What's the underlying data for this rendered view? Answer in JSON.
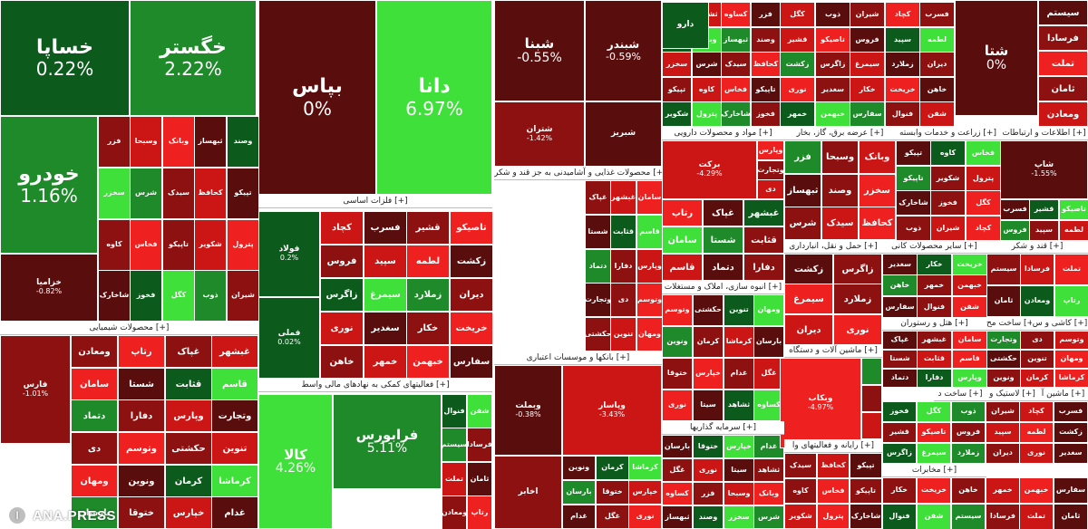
{
  "colors": {
    "strong_green": "#3fe03a",
    "green": "#1f8a2a",
    "dark_green": "#0c5a1c",
    "neutral": "#5a0d0d",
    "light_red": "#ee2020",
    "red": "#cc1515",
    "dark_red": "#8e1111",
    "header_bg": "#ffffff"
  },
  "tiles": [
    {
      "sym": "خساپا",
      "pct": "0.22%",
      "tone": "dark_green",
      "size": "xl"
    },
    {
      "sym": "خگستر",
      "pct": "2.22%",
      "tone": "green",
      "size": "xl"
    },
    {
      "sym": "خودرو",
      "pct": "1.16%",
      "tone": "green",
      "size": "xl"
    },
    {
      "sym": "خزامیا",
      "pct": "-0.82%",
      "tone": "neutral",
      "size": "s"
    },
    {
      "sym": "بپاس",
      "pct": "0%",
      "tone": "neutral",
      "size": "xl"
    },
    {
      "sym": "دانا",
      "pct": "6.97%",
      "tone": "strong_green",
      "size": "xl"
    },
    {
      "sym": "شبنا",
      "pct": "-0.55%",
      "tone": "neutral",
      "size": "l"
    },
    {
      "sym": "شبندر",
      "pct": "-0.59%",
      "tone": "neutral",
      "size": "m"
    },
    {
      "sym": "شسپا",
      "pct": "",
      "tone": "dark_red",
      "size": "s"
    },
    {
      "sym": "شتران",
      "pct": "-1.42%",
      "tone": "dark_red",
      "size": "s"
    },
    {
      "sym": "شبریز",
      "pct": "",
      "tone": "neutral",
      "size": "s"
    },
    {
      "sym": "شتا",
      "pct": "0%",
      "tone": "neutral",
      "size": "l"
    },
    {
      "sym": "فارس",
      "pct": "-1.01%",
      "tone": "dark_red",
      "size": "s"
    },
    {
      "sym": "فولاد",
      "pct": "0.2%",
      "tone": "dark_green",
      "size": "s"
    },
    {
      "sym": "فملی",
      "pct": "0.02%",
      "tone": "dark_green",
      "size": "s"
    },
    {
      "sym": "کالا",
      "pct": "4.26%",
      "tone": "strong_green",
      "size": "l"
    },
    {
      "sym": "فرابورس",
      "pct": "5.11%",
      "tone": "green",
      "size": "l"
    },
    {
      "sym": "وبملت",
      "pct": "-0.38%",
      "tone": "neutral",
      "size": "s"
    },
    {
      "sym": "وپاسار",
      "pct": "-3.43%",
      "tone": "red",
      "size": "s"
    },
    {
      "sym": "برکت",
      "pct": "-4.29%",
      "tone": "red",
      "size": "s"
    },
    {
      "sym": "شاپ",
      "pct": "-1.55%",
      "tone": "neutral",
      "size": "s"
    },
    {
      "sym": "وبکاب",
      "pct": "-4.97%",
      "tone": "light_red",
      "size": "s"
    },
    {
      "sym": "اخابر",
      "pct": "",
      "tone": "dark_red",
      "size": "s"
    },
    {
      "sym": "دارو",
      "pct": "",
      "tone": "dark_green",
      "size": "s"
    }
  ],
  "small_labels": [
    "فزر",
    "وسبحا",
    "وبانک",
    "ثبهساز",
    "وصند",
    "سخزر",
    "شرس",
    "سیدک",
    "کحافظ",
    "تپیکو",
    "کاوه",
    "فخاس",
    "تاپیکو",
    "شکویر",
    "پترول",
    "شاخارک",
    "فخوز",
    "کگل",
    "ذوب",
    "شیران",
    "کچاد",
    "فسرب",
    "قشیر",
    "تاصیکو",
    "فروس",
    "سپید",
    "لطمه",
    "زکشت",
    "زاگرس",
    "سیمرغ",
    "زملارد",
    "دیران",
    "نوری",
    "سغدیر",
    "خکار",
    "خریخت",
    "خاهن",
    "خمهر",
    "خبهمن",
    "سفارس",
    "فنوال",
    "شفن",
    "سیستم",
    "فرسادا",
    "تملت",
    "ثامان",
    "ومعادن",
    "رتاپ",
    "غپاک",
    "غبشهر",
    "سامان",
    "شستا",
    "قثابت",
    "قاسم",
    "دتماد",
    "دفارا",
    "وپارس",
    "وتجارت",
    "دی",
    "وتوسم",
    "حکشتی",
    "تنوین",
    "ومهان",
    "ونوین",
    "کرمان",
    "کرماشا",
    "بارسان",
    "ختوقا",
    "خپارس",
    "غدام",
    "غگل",
    "نوری",
    "سیتا",
    "ثشاهد",
    "کساوه"
  ],
  "headers": [
    {
      "text": "محصولات شیمیایی [+]"
    },
    {
      "text": "فلزات اساسی [+]"
    },
    {
      "text": "محصولات غذایی و آشامیدنی به جز قند و شکر [+]"
    },
    {
      "text": "انبوه سازی، املاک و مستغلات [+]"
    },
    {
      "text": "بانکها و موسسات اعتباری [+]"
    },
    {
      "text": "فعالیتهای کمکی به نهادهای مالی واسط [+]"
    },
    {
      "text": "مواد و محصولات دارویی [+]"
    },
    {
      "text": "عرضه برق، گاز، بخار [+]"
    },
    {
      "text": "زراعت و خدمات وابسته [+]"
    },
    {
      "text": "اطلاعات و ارتباطات [+]"
    },
    {
      "text": "حمل و نقل، انبارداری [+]"
    },
    {
      "text": "سایر محصولات کانی [+]"
    },
    {
      "text": "قند و شکر [+]"
    },
    {
      "text": "ماشین آلات و دستگاه [+]"
    },
    {
      "text": "هتل و رستوران [+]"
    },
    {
      "text": "ساخت مح [+]"
    },
    {
      "text": "کاشی و س [+]"
    },
    {
      "text": "سرمایه گذاریها [+]"
    },
    {
      "text": "رایانه و فعالیتهای وا [+]"
    },
    {
      "text": "مخابرات [+]"
    },
    {
      "text": "لاستیک و [+]"
    },
    {
      "text": "ساخت د [+]"
    },
    {
      "text": "ماشین آ [+]"
    }
  ],
  "watermark": {
    "brand": "ANA.PRESS",
    "logo_icon": "ana-logo-icon"
  }
}
